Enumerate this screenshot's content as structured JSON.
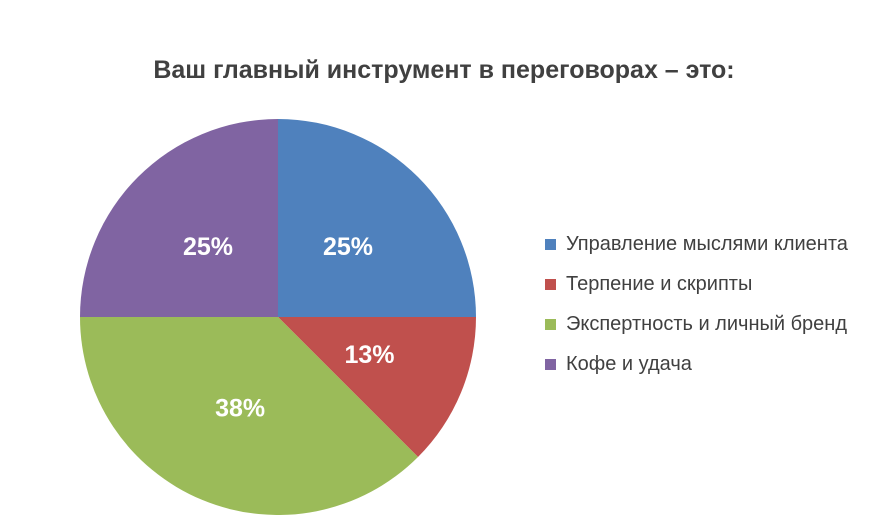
{
  "chart_data": {
    "type": "pie",
    "title": "Ваш главный инструмент в переговорах – это:",
    "title_color": "#404040",
    "slice_label_color": "#FFFFFF",
    "legend_text_color": "#404040",
    "legend_position": "right",
    "start_angle_deg": 0,
    "direction": "clockwise",
    "segments": [
      {
        "label": "Управление мыслями клиента",
        "value": 25,
        "display": "25%",
        "color": "#4F81BD"
      },
      {
        "label": "Терпение и скрипты",
        "value": 12.5,
        "display": "13%",
        "color": "#C0504D"
      },
      {
        "label": "Экспертность и личный бренд",
        "value": 37.5,
        "display": "38%",
        "color": "#9BBB59"
      },
      {
        "label": "Кофе и удача",
        "value": 25,
        "display": "25%",
        "color": "#8064A2"
      }
    ]
  }
}
